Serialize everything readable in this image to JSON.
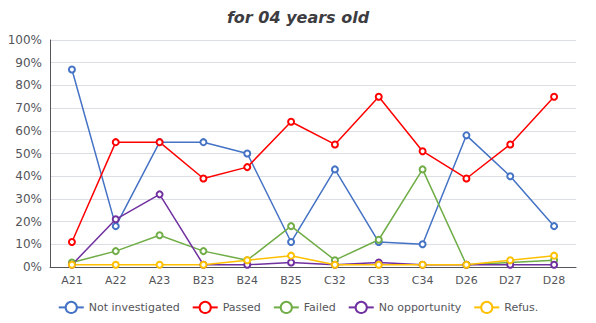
{
  "chart_data": {
    "type": "line",
    "title": "for 04 years old",
    "categories": [
      "A21",
      "A22",
      "A23",
      "B23",
      "B24",
      "B25",
      "C32",
      "C33",
      "C34",
      "D26",
      "D27",
      "D28"
    ],
    "series": [
      {
        "name": "Not investigated",
        "color": "#4472C4",
        "marker": "circle",
        "values": [
          87,
          18,
          55,
          55,
          50,
          11,
          43,
          11,
          10,
          58,
          40,
          18
        ]
      },
      {
        "name": "Passed",
        "color": "#FF0000",
        "marker": "circle",
        "values": [
          11,
          55,
          55,
          39,
          44,
          64,
          54,
          75,
          51,
          39,
          54,
          75
        ]
      },
      {
        "name": "Failed",
        "color": "#70AD47",
        "marker": "circle",
        "values": [
          2,
          7,
          14,
          7,
          3,
          18,
          3,
          12,
          43,
          1,
          2,
          3
        ]
      },
      {
        "name": "No opportunity",
        "color": "#7030A0",
        "marker": "circle",
        "values": [
          1,
          21,
          32,
          1,
          1,
          2,
          1,
          2,
          1,
          1,
          1,
          1
        ]
      },
      {
        "name": "Refus.",
        "color": "#FFC000",
        "marker": "circle",
        "values": [
          1,
          1,
          1,
          1,
          3,
          5,
          1,
          1,
          1,
          1,
          3,
          5
        ]
      }
    ],
    "ylim": [
      0,
      100
    ],
    "yticks": [
      {
        "value": 0,
        "label": "0%"
      },
      {
        "value": 10,
        "label": "10%"
      },
      {
        "value": 20,
        "label": "20%"
      },
      {
        "value": 30,
        "label": "30%"
      },
      {
        "value": 40,
        "label": "40%"
      },
      {
        "value": 50,
        "label": "50%"
      },
      {
        "value": 60,
        "label": "60%"
      },
      {
        "value": 70,
        "label": "70%"
      },
      {
        "value": 80,
        "label": "80%"
      },
      {
        "value": 90,
        "label": "90%"
      },
      {
        "value": 100,
        "label": "100%"
      }
    ],
    "grid": true,
    "legend": "bottom"
  }
}
